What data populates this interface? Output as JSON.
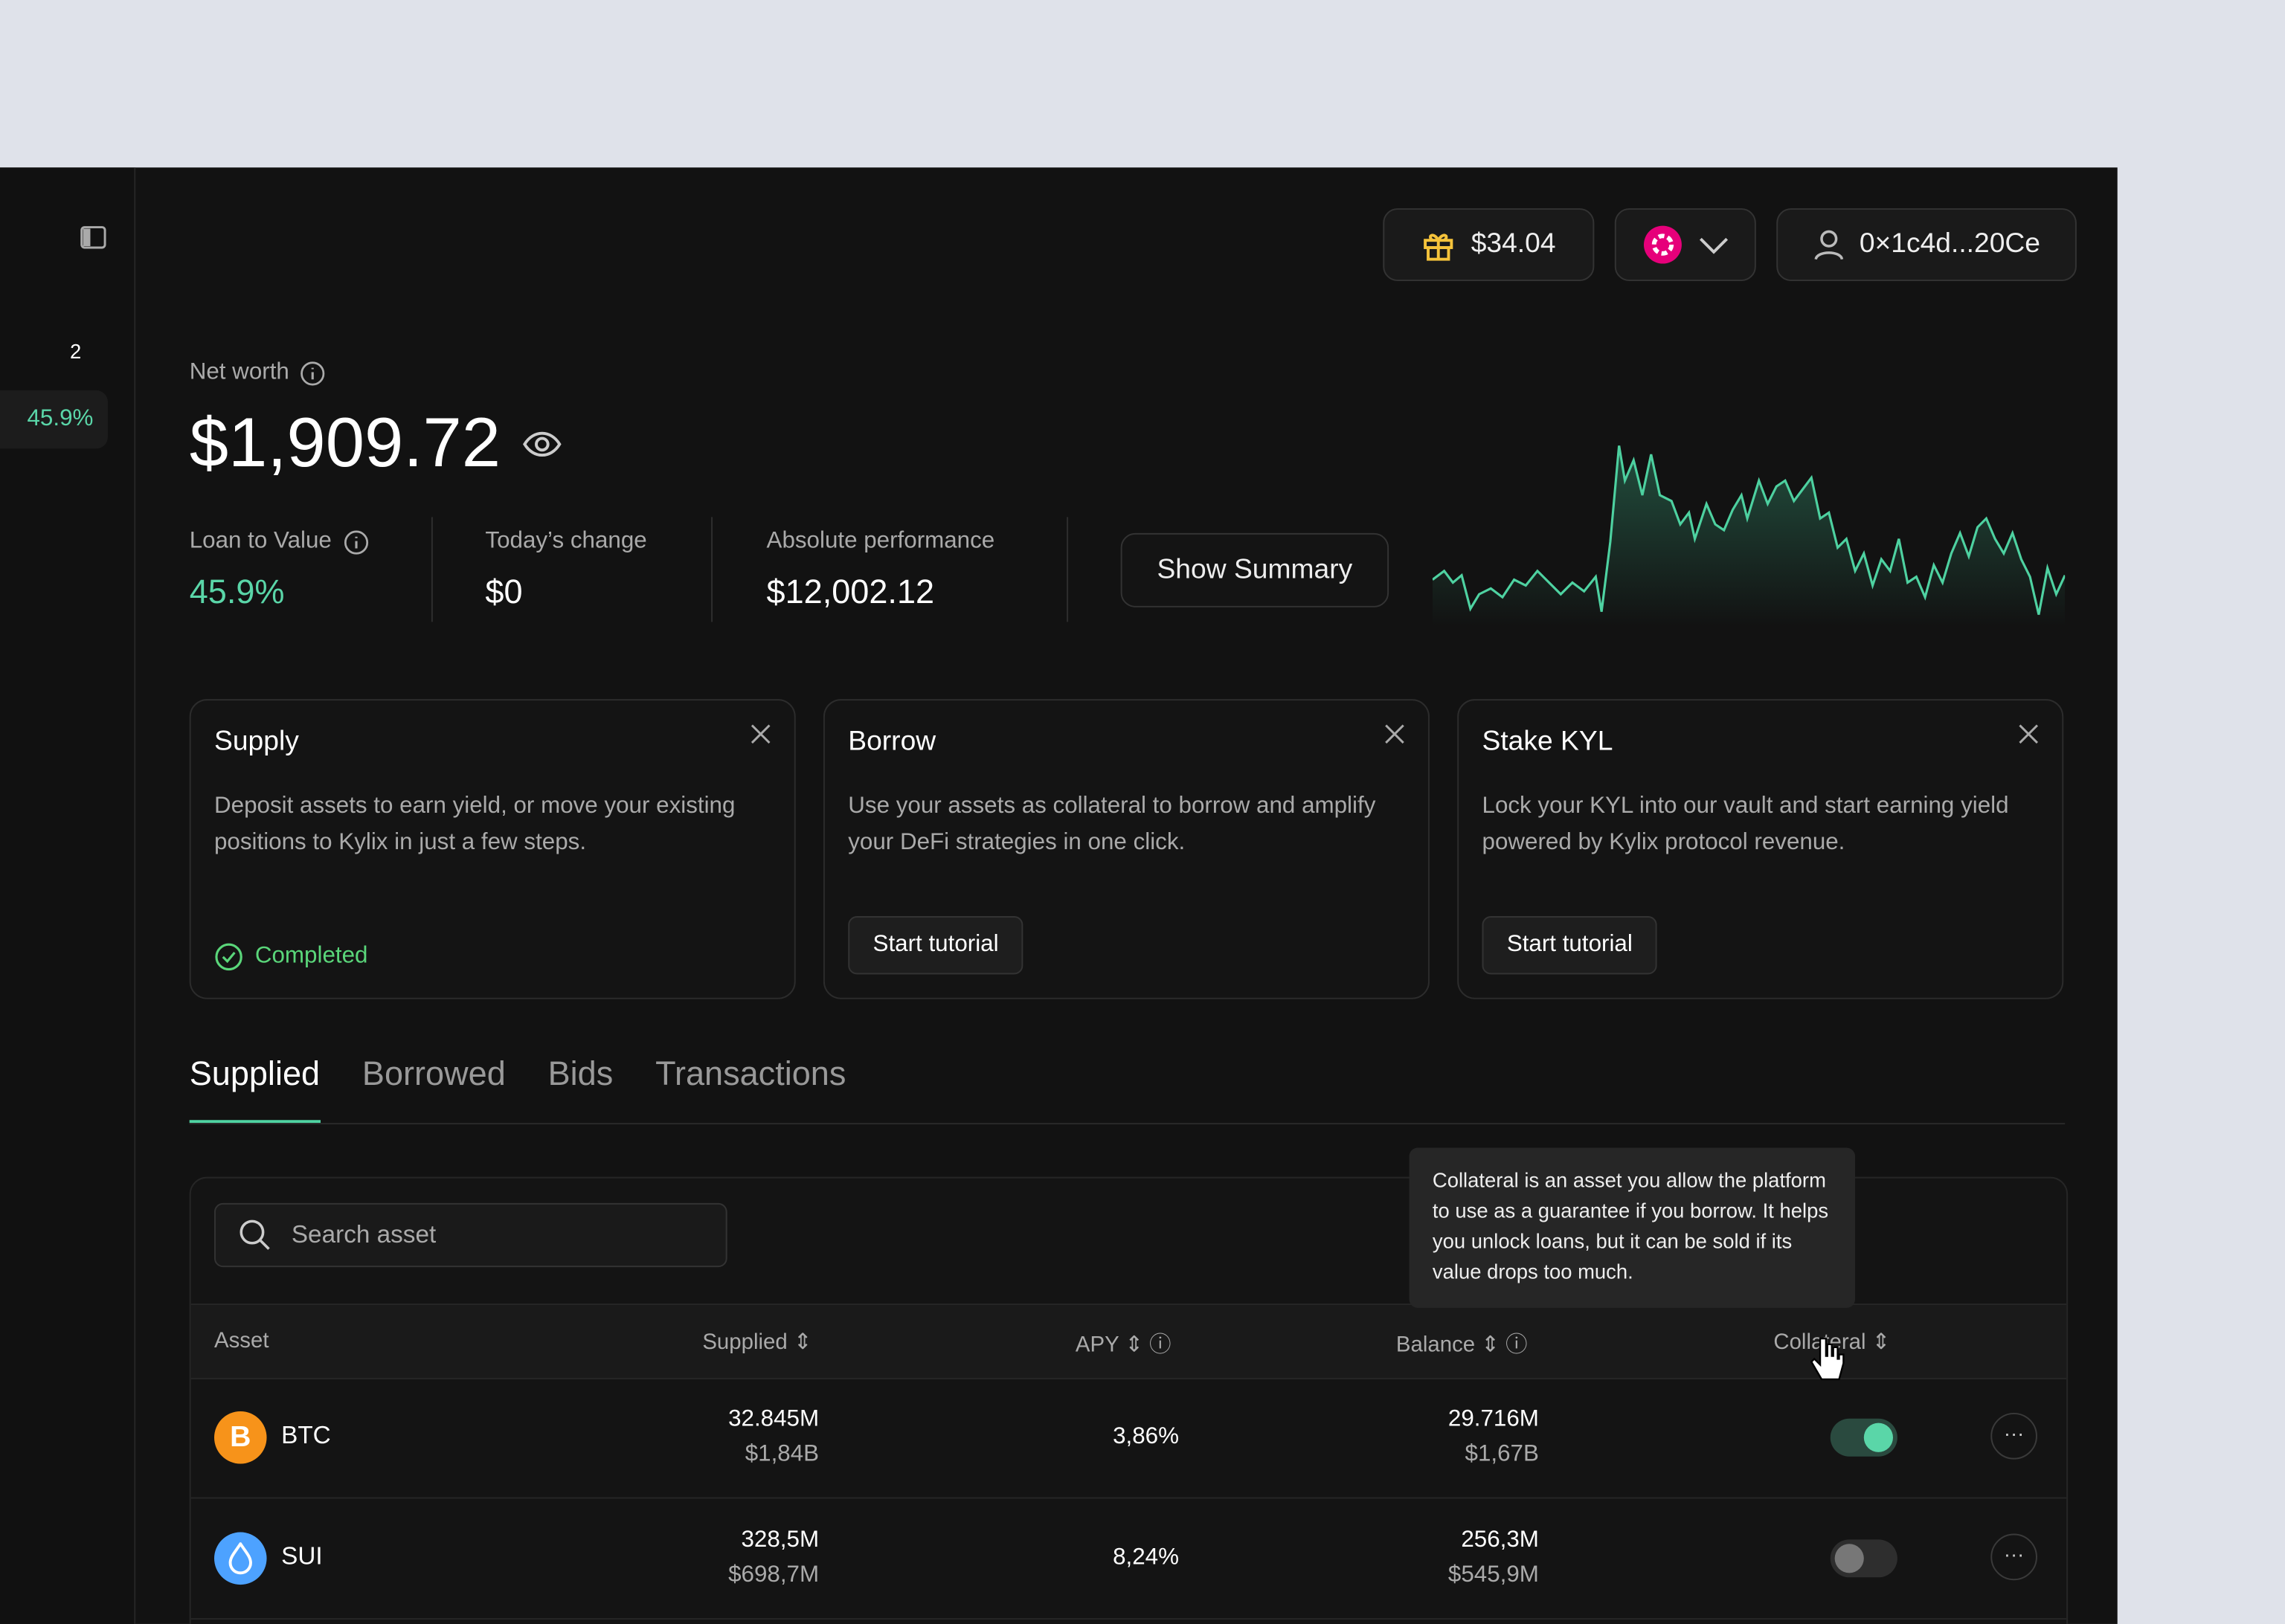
{
  "sidebar": {
    "badge": "2",
    "ltv": "45.9%"
  },
  "header": {
    "rewards": "$34.04",
    "account": "0×1c4d...20Ce"
  },
  "overview": {
    "net_worth_label": "Net worth",
    "net_worth": "$1,909.72",
    "stats": [
      {
        "label": "Loan to Value",
        "value": "45.9%"
      },
      {
        "label": "Today’s change",
        "value": "$0"
      },
      {
        "label": "Absolute performance",
        "value": "$12,002.12"
      }
    ],
    "summary_button": "Show Summary"
  },
  "cards": [
    {
      "title": "Supply",
      "text": "Deposit assets to earn yield, or move your existing positions to Kylix in just a few steps.",
      "status": "Completed"
    },
    {
      "title": "Borrow",
      "text": "Use your assets as collateral to borrow and amplify your DeFi strategies in one click.",
      "button": "Start tutorial"
    },
    {
      "title": "Stake KYL",
      "text": "Lock your KYL into our vault and start earning yield powered by Kylix protocol revenue.",
      "button": "Start tutorial"
    }
  ],
  "tabs": [
    "Supplied",
    "Borrowed",
    "Bids",
    "Transactions"
  ],
  "table": {
    "search": "Search asset",
    "tooltip": "Collateral is an asset you allow the platform to use as a guarantee if you borrow. It helps you unlock loans, but it can be sold if its value drops too much.",
    "columns": [
      "Asset",
      "Supplied",
      "APY",
      "Balance",
      "Collateral"
    ],
    "rows": [
      {
        "asset": "BTC",
        "supplied": "32.845M",
        "supplied_usd": "$1,84B",
        "apy": "3,86%",
        "balance": "29.716M",
        "balance_usd": "$1,67B",
        "collateral": true
      },
      {
        "asset": "SUI",
        "supplied": "328,5M",
        "supplied_usd": "$698,7M",
        "apy": "8,24%",
        "balance": "256,3M",
        "balance_usd": "$545,9M",
        "collateral": false
      }
    ]
  }
}
